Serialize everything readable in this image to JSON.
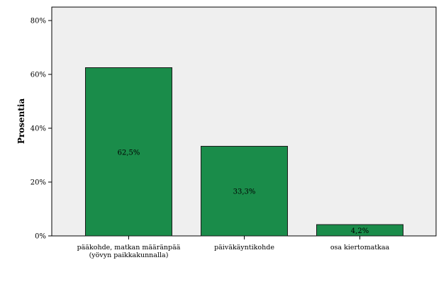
{
  "chart_data": {
    "type": "bar",
    "ylabel": "Prosentia",
    "xlabel": "",
    "ylim": [
      0,
      85
    ],
    "yticks": [
      0,
      20,
      40,
      60,
      80
    ],
    "ytick_labels": [
      "0%",
      "20%",
      "40%",
      "60%",
      "80%"
    ],
    "categories": [
      [
        "pääkohde, matkan määränpää",
        "(yövyn paikkakunnalla)"
      ],
      [
        "päiväkäyntikohde"
      ],
      [
        "osa kiertomatkaa"
      ]
    ],
    "values": [
      62.5,
      33.3,
      4.2
    ],
    "data_labels": [
      "62,5%",
      "33,3%",
      "4,2%"
    ],
    "grid": false,
    "legend": "none",
    "colors": {
      "bar_fill": "#1a8c4a",
      "bar_stroke": "#1a1a1a",
      "plot_background": "#efefef",
      "axis": "#000000"
    }
  }
}
